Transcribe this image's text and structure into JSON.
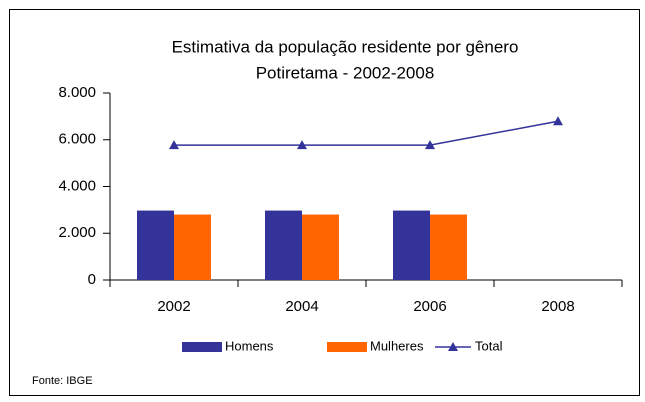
{
  "chart_data": {
    "type": "bar",
    "title": "Estimativa da população residente por gênero",
    "subtitle": "Potiretama -  2002-2008",
    "source": "Fonte: IBGE",
    "categories": [
      "2002",
      "2004",
      "2006",
      "2008"
    ],
    "series": [
      {
        "name": "Homens",
        "color": "#333399",
        "type": "bar",
        "values": [
          2970,
          2970,
          2970,
          null
        ]
      },
      {
        "name": "Mulheres",
        "color": "#ff6600",
        "type": "bar",
        "values": [
          2800,
          2800,
          2800,
          null
        ]
      },
      {
        "name": "Total",
        "color": "#333399",
        "type": "line",
        "values": [
          5770,
          5770,
          5770,
          6790
        ]
      }
    ],
    "ylim": [
      0,
      8000
    ],
    "yticks": [
      0,
      {
        "value": 2000,
        "label": "2.000"
      },
      {
        "value": 4000,
        "label": "4.000"
      },
      {
        "value": 6000,
        "label": "6.000"
      },
      {
        "value": 8000,
        "label": "8.000"
      }
    ],
    "grid": false,
    "legend": "bottom"
  }
}
